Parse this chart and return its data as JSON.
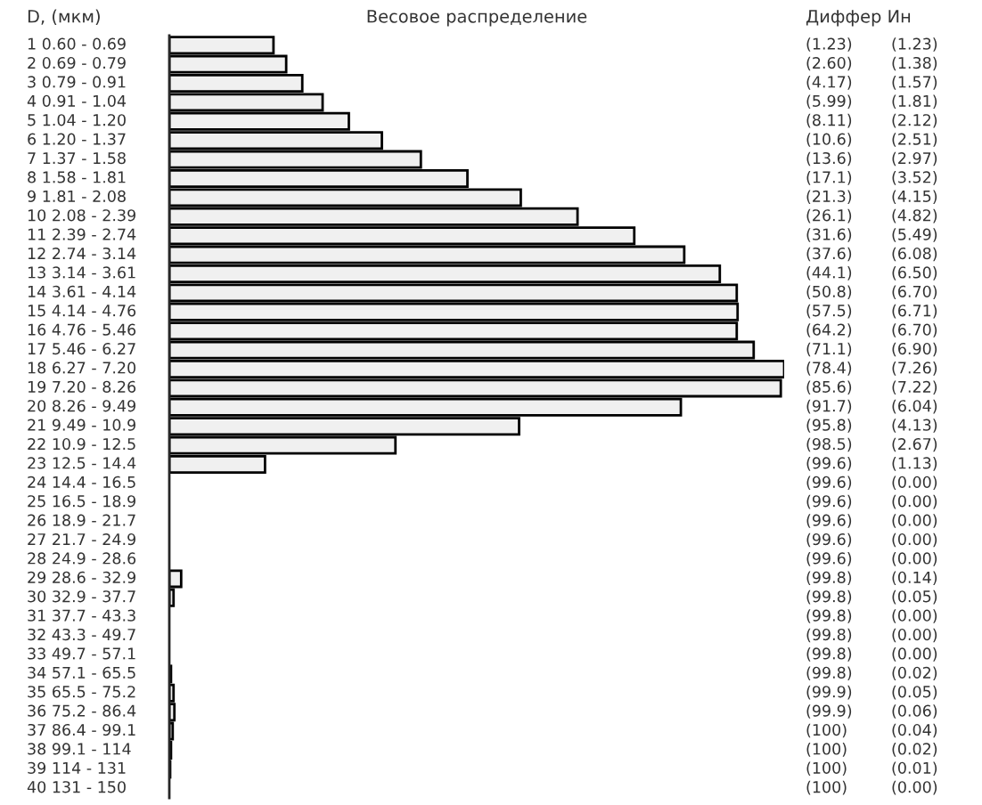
{
  "chart_data": {
    "type": "bar",
    "orientation": "horizontal",
    "title": "Весовое распределение",
    "ylabel": "D, (мкм)",
    "categories": [
      "1 0.60 - 0.69",
      "2 0.69 - 0.79",
      "3 0.79 - 0.91",
      "4 0.91 - 1.04",
      "5 1.04 - 1.20",
      "6 1.20 - 1.37",
      "7 1.37 - 1.58",
      "8 1.58 - 1.81",
      "9 1.81 - 2.08",
      "10 2.08 - 2.39",
      "11 2.39 - 2.74",
      "12 2.74 - 3.14",
      "13 3.14 - 3.61",
      "14 3.61 - 4.14",
      "15 4.14 - 4.76",
      "16 4.76 - 5.46",
      "17 5.46 - 6.27",
      "18 6.27 - 7.20",
      "19 7.20 - 8.26",
      "20 8.26 - 9.49",
      "21 9.49 - 10.9",
      "22 10.9 - 12.5",
      "23 12.5 - 14.4",
      "24 14.4 - 16.5",
      "25 16.5 - 18.9",
      "26 18.9 - 21.7",
      "27 21.7 - 24.9",
      "28 24.9 - 28.6",
      "29 28.6 - 32.9",
      "30 32.9 - 37.7",
      "31 37.7 - 43.3",
      "32 43.3 - 49.7",
      "33 49.7 - 57.1",
      "34 57.1 - 65.5",
      "35 65.5 - 75.2",
      "36 75.2 - 86.4",
      "37 86.4 - 99.1",
      "38 99.1 - 114",
      "39 114 - 131",
      "40 131 - 150"
    ],
    "values": [
      1.23,
      1.38,
      1.57,
      1.81,
      2.12,
      2.51,
      2.97,
      3.52,
      4.15,
      4.82,
      5.49,
      6.08,
      6.5,
      6.7,
      6.71,
      6.7,
      6.9,
      7.26,
      7.22,
      6.04,
      4.13,
      2.67,
      1.13,
      0.0,
      0.0,
      0.0,
      0.0,
      0.0,
      0.14,
      0.05,
      0.0,
      0.0,
      0.0,
      0.02,
      0.05,
      0.06,
      0.04,
      0.02,
      0.01,
      0.0
    ],
    "value_labels": [
      "(1.23)",
      "(1.38)",
      "(1.57)",
      "(1.81)",
      "(2.12)",
      "(2.51)",
      "(2.97)",
      "(3.52)",
      "(4.15)",
      "(4.82)",
      "(5.49)",
      "(6.08)",
      "(6.50)",
      "(6.70)",
      "(6.71)",
      "(6.70)",
      "(6.90)",
      "(7.26)",
      "(7.22)",
      "(6.04)",
      "(4.13)",
      "(2.67)",
      "(1.13)",
      "(0.00)",
      "(0.00)",
      "(0.00)",
      "(0.00)",
      "(0.00)",
      "(0.14)",
      "(0.05)",
      "(0.00)",
      "(0.00)",
      "(0.00)",
      "(0.02)",
      "(0.05)",
      "(0.06)",
      "(0.04)",
      "(0.02)",
      "(0.01)",
      "(0.00)"
    ],
    "annotations": [
      "Диффер Ин",
      "(1.23)",
      "(2.60)",
      "(4.17)",
      "(5.99)",
      "(8.11)",
      "(10.6)",
      "(13.6)",
      "(17.1)",
      "(21.3)",
      "(26.1)",
      "(31.6)",
      "(37.6)",
      "(44.1)",
      "(50.8)",
      "(57.5)",
      "(64.2)",
      "(71.1)",
      "(78.4)",
      "(85.6)",
      "(91.7)",
      "(95.8)",
      "(98.5)",
      "(99.6)",
      "(99.6)",
      "(99.6)",
      "(99.6)",
      "(99.6)",
      "(99.6)",
      "(99.8)",
      "(99.8)",
      "(99.8)",
      "(99.8)",
      "(99.8)",
      "(99.8)",
      "(99.9)",
      "(99.9)",
      "(100)",
      "(100)",
      "(100)",
      "(100)"
    ],
    "color": "#f0f0f0"
  }
}
